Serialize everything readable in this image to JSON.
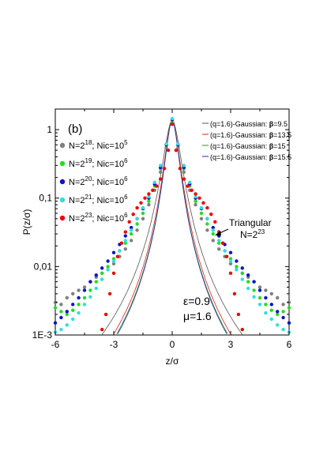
{
  "chart_data": {
    "type": "scatter",
    "panel_label": "(b)",
    "xlabel": "z/σ",
    "ylabel": "P(z/σ)",
    "xlim": [
      -6,
      6
    ],
    "ylim": [
      0.001,
      2
    ],
    "yscale": "log",
    "xticks": [
      -6,
      -3,
      0,
      3,
      6
    ],
    "xtick_labels": [
      "-6",
      "-3",
      "0",
      "3",
      "6"
    ],
    "yticks": [
      0.001,
      0.01,
      0.1,
      1
    ],
    "ytick_labels": [
      "1E-3",
      "0,01",
      "0,1",
      "1"
    ],
    "grid": false,
    "legend_position": "top-left",
    "series": [
      {
        "name": "N=2^18; Nic=10^5",
        "label_prefix": "N=2",
        "label_exp": "18",
        "label_mid": "; Nic=10",
        "label_exp2": "5",
        "color": "#7f7f7f",
        "x": [
          -6.0,
          -5.7,
          -5.4,
          -5.1,
          -4.8,
          -4.5,
          -4.2,
          -3.9,
          -3.6,
          -3.3,
          -3.0,
          -2.7,
          -2.4,
          -2.1,
          -1.8,
          -1.5,
          -1.2,
          -0.9,
          -0.6,
          -0.3,
          0.0,
          0.3,
          0.6,
          0.9,
          1.2,
          1.5,
          1.8,
          2.1,
          2.4,
          2.7,
          3.0,
          3.3,
          3.6,
          3.9,
          4.2,
          4.5,
          4.8,
          5.1,
          5.4,
          5.7,
          6.0
        ],
        "y": [
          0.003,
          0.0028,
          0.0035,
          0.004,
          0.0045,
          0.005,
          0.006,
          0.007,
          0.008,
          0.009,
          0.011,
          0.014,
          0.018,
          0.024,
          0.034,
          0.05,
          0.08,
          0.13,
          0.24,
          0.55,
          1.2,
          0.55,
          0.24,
          0.13,
          0.08,
          0.05,
          0.034,
          0.024,
          0.018,
          0.014,
          0.011,
          0.009,
          0.008,
          0.007,
          0.006,
          0.005,
          0.0045,
          0.004,
          0.0035,
          0.0028,
          0.003
        ]
      },
      {
        "name": "N=2^19; Nic=10^6",
        "label_prefix": "N=2",
        "label_exp": "19",
        "label_mid": "; Nic=10",
        "label_exp2": "6",
        "color": "#22dd22",
        "x": [
          -6.0,
          -5.7,
          -5.4,
          -5.1,
          -4.8,
          -4.5,
          -4.2,
          -3.9,
          -3.6,
          -3.3,
          -3.0,
          -2.7,
          -2.4,
          -2.1,
          -1.8,
          -1.5,
          -1.2,
          -0.9,
          -0.6,
          -0.3,
          0.0,
          0.3,
          0.6,
          0.9,
          1.2,
          1.5,
          1.8,
          2.1,
          2.4,
          2.7,
          3.0,
          3.3,
          3.6,
          3.9,
          4.2,
          4.5,
          4.8,
          5.1,
          5.4,
          5.7,
          6.0
        ],
        "y": [
          0.0025,
          0.0022,
          0.002,
          0.0023,
          0.0028,
          0.0035,
          0.0045,
          0.006,
          0.008,
          0.01,
          0.013,
          0.017,
          0.022,
          0.03,
          0.042,
          0.06,
          0.09,
          0.15,
          0.27,
          0.6,
          1.3,
          0.6,
          0.27,
          0.15,
          0.09,
          0.06,
          0.042,
          0.03,
          0.022,
          0.017,
          0.013,
          0.01,
          0.008,
          0.006,
          0.0045,
          0.0035,
          0.0028,
          0.0023,
          0.002,
          0.0022,
          0.0025
        ]
      },
      {
        "name": "N=2^20; Nic=10^6",
        "label_prefix": "N=2",
        "label_exp": "20",
        "label_mid": "; Nic=10",
        "label_exp2": "6",
        "color": "#0a14c8",
        "x": [
          -6.0,
          -5.7,
          -5.4,
          -5.1,
          -4.8,
          -4.5,
          -4.2,
          -3.9,
          -3.6,
          -3.3,
          -3.0,
          -2.7,
          -2.4,
          -2.1,
          -1.8,
          -1.5,
          -1.2,
          -0.9,
          -0.6,
          -0.3,
          0.0,
          0.3,
          0.6,
          0.9,
          1.2,
          1.5,
          1.8,
          2.1,
          2.4,
          2.7,
          3.0,
          3.3,
          3.6,
          3.9,
          4.2,
          4.5,
          4.8,
          5.1,
          5.4,
          5.7,
          6.0
        ],
        "y": [
          0.0015,
          0.0018,
          0.0022,
          0.0028,
          0.0035,
          0.0045,
          0.006,
          0.0075,
          0.0095,
          0.012,
          0.016,
          0.021,
          0.028,
          0.037,
          0.05,
          0.07,
          0.1,
          0.16,
          0.28,
          0.6,
          1.4,
          0.6,
          0.28,
          0.16,
          0.1,
          0.07,
          0.05,
          0.037,
          0.028,
          0.021,
          0.016,
          0.012,
          0.0095,
          0.0075,
          0.006,
          0.0045,
          0.0035,
          0.0028,
          0.0022,
          0.0018,
          0.0015
        ]
      },
      {
        "name": "N=2^21; Nic=10^6",
        "label_prefix": "N=2",
        "label_exp": "21",
        "label_mid": "; Nic=10",
        "label_exp2": "6",
        "color": "#33dddd",
        "x": [
          -6.0,
          -5.7,
          -5.4,
          -5.1,
          -4.8,
          -4.5,
          -4.2,
          -3.9,
          -3.6,
          -3.3,
          -3.0,
          -2.7,
          -2.4,
          -2.1,
          -1.8,
          -1.5,
          -1.2,
          -0.9,
          -0.6,
          -0.3,
          0.0,
          0.3,
          0.6,
          0.9,
          1.2,
          1.5,
          1.8,
          2.1,
          2.4,
          2.7,
          3.0,
          3.3,
          3.6,
          3.9,
          4.2,
          4.5,
          4.8,
          5.1,
          5.4,
          5.7,
          6.0
        ],
        "y": [
          0.0011,
          0.0012,
          0.0014,
          0.0017,
          0.0021,
          0.0028,
          0.0036,
          0.0048,
          0.0065,
          0.009,
          0.012,
          0.017,
          0.024,
          0.034,
          0.05,
          0.072,
          0.105,
          0.17,
          0.3,
          0.62,
          1.45,
          0.62,
          0.3,
          0.17,
          0.105,
          0.072,
          0.05,
          0.034,
          0.024,
          0.017,
          0.012,
          0.009,
          0.0065,
          0.0048,
          0.0036,
          0.0028,
          0.0021,
          0.0017,
          0.0014,
          0.0012,
          0.0011
        ]
      },
      {
        "name": "N=2^23; Nic=10^6",
        "label_prefix": "N=2",
        "label_exp": "23",
        "label_mid": "; Nic=10",
        "label_exp2": "6",
        "color": "#ee0000",
        "x": [
          -3.6,
          -3.4,
          -3.2,
          -3.0,
          -2.8,
          -2.6,
          -2.4,
          -2.2,
          -2.0,
          -1.8,
          -1.6,
          -1.4,
          -1.2,
          -1.0,
          -0.8,
          -0.6,
          -0.4,
          -0.2,
          0.0,
          0.2,
          0.4,
          0.6,
          0.8,
          1.0,
          1.2,
          1.4,
          1.6,
          1.8,
          2.0,
          2.2,
          2.4,
          2.6,
          2.8,
          3.0,
          3.2,
          3.4,
          3.6
        ],
        "y": [
          0.0012,
          0.002,
          0.004,
          0.008,
          0.014,
          0.022,
          0.032,
          0.045,
          0.058,
          0.072,
          0.085,
          0.1,
          0.115,
          0.13,
          0.15,
          0.19,
          0.27,
          0.5,
          1.2,
          0.5,
          0.27,
          0.19,
          0.15,
          0.13,
          0.115,
          0.1,
          0.085,
          0.072,
          0.058,
          0.045,
          0.032,
          0.022,
          0.014,
          0.008,
          0.004,
          0.002,
          0.0012
        ]
      }
    ],
    "curves": [
      {
        "label_text": "(q=1.6)-Gaussian: ",
        "beta_symbol": "β",
        "beta_value": "=9.5",
        "beta": 9.5,
        "color": "#555555"
      },
      {
        "label_text": "(q=1.6)-Gaussian: ",
        "beta_symbol": "β",
        "beta_value": "=13.5",
        "beta": 13.5,
        "color": "#e02020"
      },
      {
        "label_text": "(q=1.6)-Gaussian: ",
        "beta_symbol": "β",
        "beta_value": "=15",
        "beta": 15,
        "color": "#2a9a2a"
      },
      {
        "label_text": "(q=1.6)-Gaussian: ",
        "beta_symbol": "β",
        "beta_value": "=15.5",
        "beta": 15.5,
        "color": "#2a2aaa"
      }
    ],
    "annotations": {
      "triangular_label": "Triangular",
      "triangular_n_prefix": "N=2",
      "triangular_n_exp": "23",
      "epsilon": "ε=0.9",
      "mu": "μ=1.6"
    }
  }
}
